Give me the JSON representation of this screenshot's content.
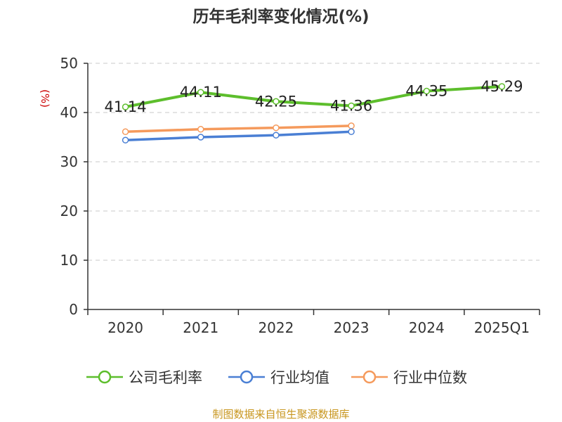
{
  "chart_data": {
    "type": "line",
    "title": "历年毛利率变化情况(%)",
    "ylabel": "(%)",
    "xlabel": "",
    "categories": [
      "2020",
      "2021",
      "2022",
      "2023",
      "2024",
      "2025Q1"
    ],
    "y_ticks": [
      "0",
      "10",
      "20",
      "30",
      "40",
      "50"
    ],
    "ylim": [
      0,
      50
    ],
    "grid": true,
    "legend_position": "bottom",
    "series": [
      {
        "name": "公司毛利率",
        "color": "#5dbe2c",
        "values": [
          41.14,
          44.11,
          42.25,
          41.36,
          44.35,
          45.29
        ],
        "labels": [
          "41.14",
          "44.11",
          "42.25",
          "41.36",
          "44.35",
          "45.29"
        ]
      },
      {
        "name": "行业均值",
        "color": "#4a7fd4",
        "values": [
          34.4,
          35.0,
          35.4,
          36.1,
          null,
          null
        ]
      },
      {
        "name": "行业中位数",
        "color": "#f59a5c",
        "values": [
          36.1,
          36.6,
          36.9,
          37.3,
          null,
          null
        ]
      }
    ]
  },
  "y_unit_color": "#cc0000",
  "source_text": "制图数据来自恒生聚源数据库"
}
